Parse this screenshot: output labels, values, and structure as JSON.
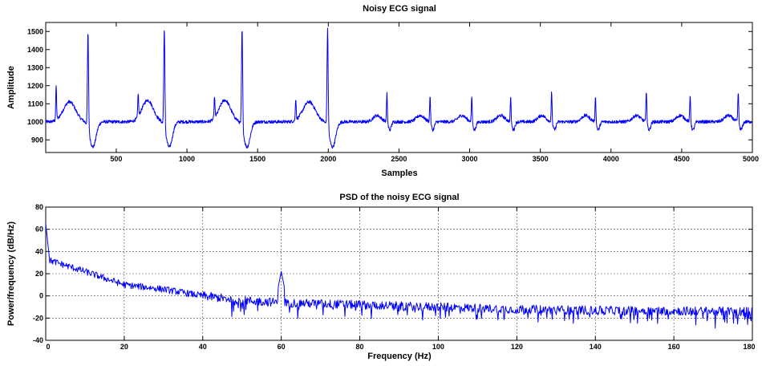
{
  "chart_data": [
    {
      "type": "line",
      "title": "Noisy ECG signal",
      "xlabel": "Samples",
      "ylabel": "Amplitude",
      "xlim": [
        1,
        5000
      ],
      "ylim": [
        830,
        1550
      ],
      "xticks": [
        500,
        1000,
        1500,
        2000,
        2500,
        3000,
        3500,
        4000,
        4500,
        5000
      ],
      "yticks": [
        900,
        1000,
        1100,
        1200,
        1300,
        1400,
        1500
      ],
      "grid": false,
      "line_color": "#0000ff",
      "beats": {
        "r_peak_samples": [
          300,
          840,
          1390,
          1995,
          2415,
          2720,
          3015,
          3290,
          3580,
          3890,
          4250,
          4560,
          4900
        ],
        "r_peak_amplitudes": [
          1530,
          1550,
          1550,
          1550,
          1160,
          1150,
          1145,
          1140,
          1170,
          1150,
          1180,
          1150,
          1170
        ],
        "early_spike_samples": [
          75,
          655,
          1195,
          1770
        ],
        "early_spike_amplitudes": [
          1230,
          1170,
          1160,
          1160
        ]
      },
      "baseline": 1000
    },
    {
      "type": "line",
      "title": "PSD of the noisy ECG signal",
      "xlabel": "Frequency (Hz)",
      "ylabel": "Power/frequency (dB/Hz)",
      "xlim": [
        0,
        180
      ],
      "ylim": [
        -40,
        80
      ],
      "xticks": [
        0,
        20,
        40,
        60,
        80,
        100,
        120,
        140,
        160,
        180
      ],
      "yticks": [
        -40,
        -20,
        0,
        20,
        40,
        60,
        80
      ],
      "grid": true,
      "line_color": "#0000ff",
      "features": {
        "dc_peak_db": 65,
        "powerline_peak_hz": 60,
        "powerline_peak_db": 22,
        "envelope": [
          [
            0,
            65
          ],
          [
            1,
            32
          ],
          [
            10,
            22
          ],
          [
            20,
            10
          ],
          [
            30,
            6
          ],
          [
            40,
            0
          ],
          [
            50,
            -4
          ],
          [
            60,
            -6
          ],
          [
            80,
            -8
          ],
          [
            100,
            -10
          ],
          [
            120,
            -12
          ],
          [
            140,
            -13
          ],
          [
            160,
            -13.5
          ],
          [
            180,
            -14
          ]
        ]
      }
    }
  ]
}
